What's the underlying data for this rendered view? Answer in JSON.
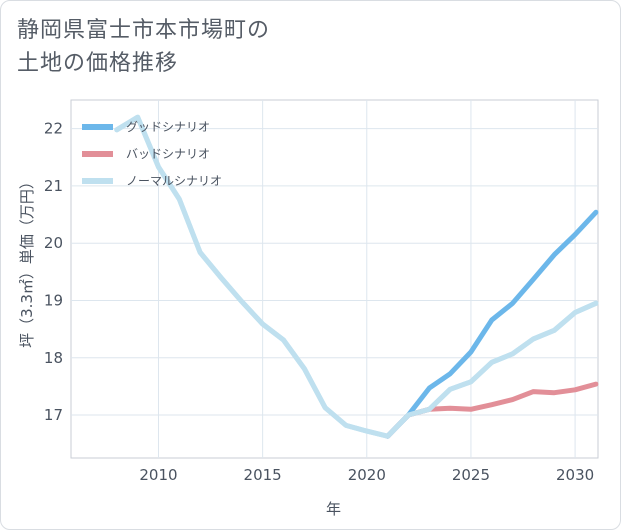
{
  "title_lines": [
    "静岡県富士市本市場町の",
    "土地の価格推移"
  ],
  "chart_data": {
    "type": "line",
    "title": "静岡県富士市本市場町の土地の価格推移",
    "xlabel": "年",
    "ylabel": "坪（3.3㎡）単価（万円）",
    "xlim": [
      2005.8,
      2031.1
    ],
    "ylim": [
      16.25,
      22.5
    ],
    "xticks": [
      2010,
      2015,
      2020,
      2025,
      2030
    ],
    "yticks": [
      17,
      18,
      19,
      20,
      21,
      22
    ],
    "grid": true,
    "legend_position": "top-left",
    "series": [
      {
        "name": "グッドシナリオ",
        "color": "#6cb7ea",
        "x": [
          2021,
          2022,
          2023,
          2024,
          2025,
          2026,
          2027,
          2028,
          2029,
          2030,
          2031
        ],
        "y": [
          16.63,
          17.0,
          17.47,
          17.72,
          18.1,
          18.66,
          18.95,
          19.37,
          19.8,
          20.15,
          20.54
        ]
      },
      {
        "name": "バッドシナリオ",
        "color": "#e28f98",
        "x": [
          2021,
          2022,
          2023,
          2024,
          2025,
          2026,
          2027,
          2028,
          2029,
          2030,
          2031
        ],
        "y": [
          16.63,
          17.0,
          17.1,
          17.12,
          17.1,
          17.18,
          17.27,
          17.41,
          17.39,
          17.44,
          17.54
        ]
      },
      {
        "name": "ノーマルシナリオ",
        "color": "#bfe0ef",
        "x": [
          2008,
          2009,
          2010,
          2011,
          2012,
          2013,
          2014,
          2015,
          2016,
          2017,
          2018,
          2019,
          2020,
          2021,
          2022,
          2023,
          2024,
          2025,
          2026,
          2027,
          2028,
          2029,
          2030,
          2031
        ],
        "y": [
          21.98,
          22.2,
          21.33,
          20.77,
          19.84,
          19.4,
          18.98,
          18.59,
          18.31,
          17.81,
          17.13,
          16.82,
          16.72,
          16.63,
          17.0,
          17.1,
          17.45,
          17.58,
          17.92,
          18.07,
          18.33,
          18.48,
          18.79,
          18.95
        ]
      }
    ]
  }
}
